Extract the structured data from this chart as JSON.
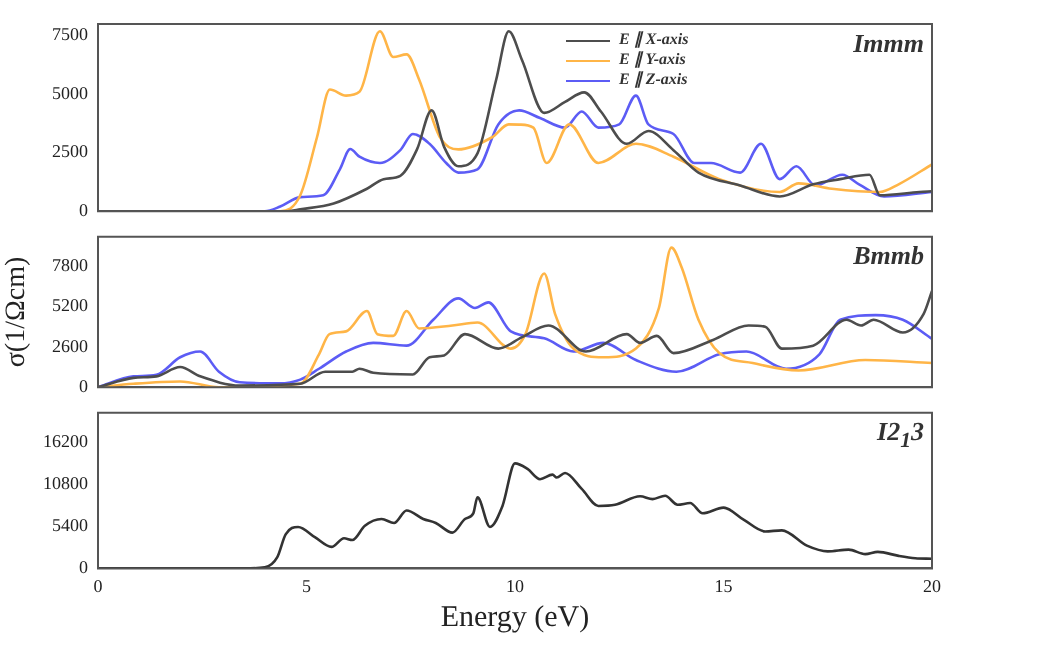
{
  "chart_data": [
    {
      "type": "line",
      "annotations": [
        "Immm"
      ],
      "xlim": [
        0,
        20
      ],
      "xticks": [
        0,
        5,
        10,
        15,
        20
      ],
      "ylim": [
        0,
        8000
      ],
      "yticks": [
        0,
        2500,
        5000,
        7500
      ],
      "tick_labels": "y",
      "grid": false,
      "marker": "none",
      "legend": "top right",
      "series": [
        {
          "name": "E ∥ X-axis",
          "color": "#4d4d4d",
          "x": [
            0,
            4.5,
            4.85,
            5.65,
            6.45,
            6.85,
            7.25,
            7.65,
            8.0,
            8.3,
            8.64,
            9.1,
            9.55,
            9.85,
            10.17,
            10.7,
            11.2,
            11.66,
            12.06,
            12.68,
            13.2,
            13.8,
            14.4,
            15.4,
            16.35,
            17.15,
            17.8,
            18.5,
            18.75,
            19.7,
            20
          ],
          "values": [
            0,
            0,
            80,
            330,
            960,
            1370,
            1510,
            2640,
            4310,
            2750,
            1920,
            2470,
            5630,
            7690,
            6450,
            4200,
            4670,
            5080,
            4260,
            2880,
            3430,
            2610,
            1650,
            1100,
            630,
            1150,
            1370,
            1560,
            680,
            820,
            850
          ]
        },
        {
          "name": "E ∥ Y-axis",
          "color": "#ffb547",
          "x": [
            0,
            4.37,
            4.85,
            5.25,
            5.56,
            5.95,
            6.27,
            6.76,
            7.08,
            7.4,
            7.7,
            8.2,
            8.64,
            9.45,
            9.85,
            10.12,
            10.44,
            10.76,
            11.3,
            12.0,
            12.9,
            13.8,
            14.9,
            16.35,
            16.8,
            17.6,
            18.75,
            19.2,
            20
          ],
          "values": [
            0,
            0,
            680,
            3150,
            5200,
            4940,
            5100,
            7690,
            6590,
            6700,
            5630,
            3160,
            2640,
            3160,
            3710,
            3700,
            3570,
            2060,
            3710,
            2060,
            2880,
            2330,
            1370,
            820,
            1190,
            960,
            820,
            1150,
            2000
          ]
        },
        {
          "name": "E ∥ Z-axis",
          "color": "#5c5cf5",
          "x": [
            0,
            4.0,
            4.37,
            4.85,
            5.4,
            5.8,
            6.05,
            6.27,
            6.76,
            7.25,
            7.55,
            7.95,
            8.35,
            8.64,
            9.1,
            9.6,
            10.1,
            10.6,
            11.2,
            11.6,
            12.0,
            12.5,
            12.9,
            13.2,
            13.8,
            14.3,
            14.7,
            15.4,
            15.9,
            16.35,
            16.75,
            17.2,
            17.85,
            18.25,
            18.85,
            20
          ],
          "values": [
            0,
            0,
            200,
            600,
            680,
            1790,
            2660,
            2330,
            2060,
            2610,
            3300,
            2880,
            2060,
            1650,
            1790,
            3710,
            4310,
            3980,
            3570,
            4260,
            3570,
            3710,
            4940,
            3710,
            3300,
            2060,
            2060,
            1650,
            2880,
            1370,
            1920,
            1100,
            1560,
            1150,
            630,
            820
          ]
        }
      ]
    },
    {
      "type": "line",
      "annotations": [
        "Bmmb"
      ],
      "ylabel": "σ(1/Ωcm)",
      "xlim": [
        0,
        20
      ],
      "xticks": [
        0,
        5,
        10,
        15,
        20
      ],
      "ylim": [
        0,
        9700
      ],
      "yticks": [
        0,
        2600,
        5200,
        7800
      ],
      "tick_labels": "y",
      "grid": false,
      "marker": "none",
      "series": [
        {
          "color": "#4d4d4d",
          "x": [
            0,
            0.85,
            1.4,
            1.97,
            2.45,
            3.4,
            4.85,
            5.45,
            6.1,
            6.27,
            6.6,
            7.55,
            7.95,
            8.3,
            8.8,
            9.6,
            10.17,
            10.8,
            11.7,
            12.68,
            13.0,
            13.4,
            13.8,
            14.75,
            15.6,
            16.0,
            16.4,
            17.15,
            17.95,
            18.3,
            18.6,
            19.3,
            19.8,
            20
          ],
          "values": [
            0,
            600,
            700,
            1300,
            700,
            110,
            220,
            1000,
            1000,
            1190,
            930,
            820,
            1930,
            2050,
            3420,
            2490,
            3230,
            3980,
            2300,
            3420,
            2860,
            3310,
            2200,
            3050,
            3980,
            3900,
            2490,
            2680,
            4350,
            3980,
            4350,
            3530,
            4730,
            6210
          ]
        },
        {
          "color": "#ffb547",
          "x": [
            0,
            0.85,
            1.97,
            2.9,
            4.85,
            5.3,
            5.55,
            5.95,
            6.45,
            6.7,
            7.08,
            7.4,
            7.7,
            8.5,
            9.1,
            9.9,
            10.25,
            10.7,
            10.96,
            11.4,
            12.12,
            12.9,
            13.45,
            13.75,
            14.0,
            14.4,
            14.9,
            15.7,
            16.8,
            18.4,
            20
          ],
          "values": [
            0,
            220,
            370,
            0,
            220,
            2120,
            3420,
            3600,
            4910,
            3420,
            3310,
            4910,
            3790,
            3980,
            4170,
            2490,
            3420,
            7330,
            4730,
            2490,
            1930,
            2490,
            5100,
            9000,
            7700,
            4350,
            2200,
            1560,
            1080,
            1750,
            1560
          ]
        },
        {
          "color": "#5c5cf5",
          "x": [
            0,
            0.85,
            1.4,
            1.97,
            2.45,
            2.9,
            3.4,
            4.35,
            4.85,
            5.3,
            5.95,
            6.6,
            7.4,
            8.04,
            8.64,
            9.04,
            9.36,
            9.9,
            10.7,
            11.4,
            12.12,
            12.9,
            13.87,
            14.9,
            15.55,
            16.5,
            17.3,
            17.8,
            18.65,
            19.3,
            20
          ],
          "values": [
            0,
            700,
            800,
            1930,
            2300,
            1000,
            320,
            250,
            490,
            1190,
            2300,
            2860,
            2680,
            4350,
            5730,
            5110,
            5470,
            3600,
            3150,
            2300,
            2860,
            1750,
            1000,
            2120,
            2300,
            1190,
            2120,
            4350,
            4650,
            4350,
            3120
          ]
        }
      ]
    },
    {
      "type": "line",
      "annotations": [
        "I2$_{1}$3"
      ],
      "xlabel": "Energy (eV)",
      "xlim": [
        0,
        20
      ],
      "xticks": [
        0,
        5,
        10,
        15,
        20
      ],
      "ylim": [
        0,
        20000
      ],
      "yticks": [
        0,
        5400,
        10800,
        16200
      ],
      "grid": false,
      "marker": "none",
      "series": [
        {
          "color": "#333333",
          "x": [
            0,
            3.5,
            4.0,
            4.3,
            4.5,
            4.8,
            5.2,
            5.6,
            5.9,
            6.1,
            6.4,
            6.8,
            7.1,
            7.4,
            7.8,
            8.1,
            8.5,
            8.8,
            9.0,
            9.1,
            9.4,
            9.7,
            10.0,
            10.3,
            10.6,
            10.9,
            11.0,
            11.2,
            11.6,
            12.0,
            12.4,
            13.0,
            13.3,
            13.6,
            13.9,
            14.2,
            14.5,
            15.0,
            15.5,
            16.0,
            16.4,
            17.0,
            17.5,
            18.0,
            18.4,
            18.7,
            19.2,
            19.6,
            20
          ],
          "values": [
            0,
            0,
            150,
            1460,
            4380,
            5330,
            4020,
            2770,
            3870,
            3650,
            5480,
            6350,
            5840,
            7450,
            6350,
            5840,
            4600,
            6350,
            7080,
            9130,
            5330,
            8030,
            13500,
            12780,
            11460,
            12050,
            11680,
            12260,
            10220,
            8030,
            8180,
            9270,
            8910,
            9340,
            8180,
            8400,
            7080,
            7810,
            6200,
            4750,
            4890,
            2920,
            2190,
            2410,
            1830,
            2120,
            1610,
            1310,
            1240
          ]
        }
      ]
    }
  ]
}
